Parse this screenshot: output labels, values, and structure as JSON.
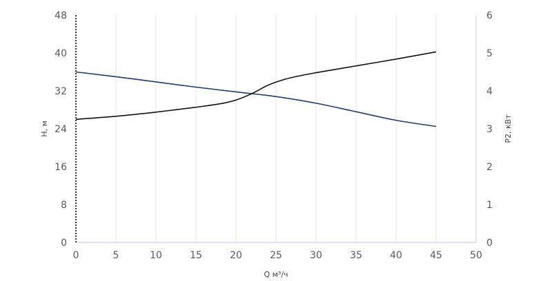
{
  "chart_data": {
    "type": "line",
    "xlabel": "Q м³/ч",
    "ylabel": "H, м",
    "y2label": "P2, кВт",
    "xlim": [
      0,
      50
    ],
    "ylim": [
      0,
      48
    ],
    "y2lim": [
      0,
      6
    ],
    "x_ticks": [
      0,
      5,
      10,
      15,
      20,
      25,
      30,
      35,
      40,
      45,
      50
    ],
    "y_ticks": [
      0,
      8,
      16,
      24,
      32,
      40,
      48
    ],
    "y2_ticks": [
      0,
      1,
      2,
      3,
      4,
      5,
      6
    ],
    "grid": "vertical",
    "series": [
      {
        "axis": "left",
        "color": "#1f3a6e",
        "x": [
          0,
          5,
          10,
          15,
          20,
          25,
          30,
          35,
          40,
          45
        ],
        "y": [
          36.0,
          35.0,
          33.9,
          32.8,
          31.8,
          30.8,
          29.4,
          27.6,
          25.8,
          24.5
        ]
      },
      {
        "axis": "right",
        "color": "#111111",
        "x": [
          0,
          5,
          10,
          15,
          18,
          20,
          22,
          24,
          26,
          28,
          30,
          35,
          40,
          45
        ],
        "y": [
          3.25,
          3.33,
          3.44,
          3.57,
          3.66,
          3.76,
          3.93,
          4.15,
          4.3,
          4.4,
          4.48,
          4.66,
          4.84,
          5.03
        ]
      }
    ]
  }
}
